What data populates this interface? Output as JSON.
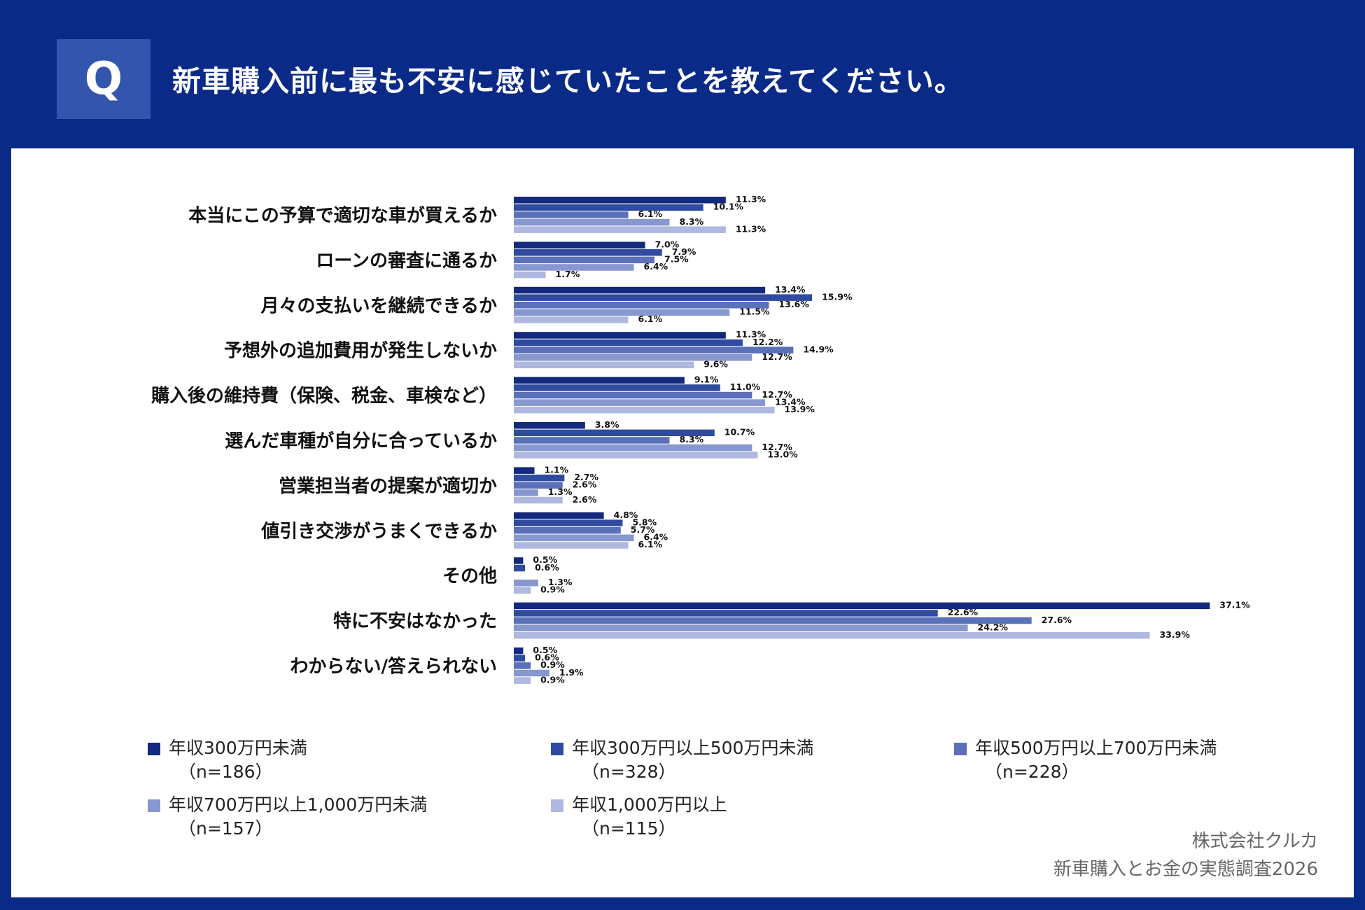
{
  "header": {
    "q_label": "Q",
    "question": "新車購入前に最も不安に感じていたことを教えてください。"
  },
  "colors": {
    "header_bg": "#0a2a88",
    "series": [
      "#12297e",
      "#2f4ba1",
      "#5a70b8",
      "#8797cf",
      "#aeb8e0"
    ]
  },
  "legend": [
    {
      "label": "年収300万円未満",
      "n": "（n=186）"
    },
    {
      "label": "年収300万円以上500万円未満",
      "n": "（n=328）"
    },
    {
      "label": "年収500万円以上700万円未満",
      "n": "（n=228）"
    },
    {
      "label": "年収700万円以上1,000万円未満",
      "n": "（n=157）"
    },
    {
      "label": "年収1,000万円以上",
      "n": "（n=115）"
    }
  ],
  "credit": {
    "company": "株式会社クルカ",
    "survey": "新車購入とお金の実態調査2026"
  },
  "chart_data": {
    "type": "bar",
    "orientation": "horizontal",
    "unit": "%",
    "xlim": [
      0,
      40
    ],
    "categories": [
      "本当にこの予算で適切な車が買えるか",
      "ローンの審査に通るか",
      "月々の支払いを継続できるか",
      "予想外の追加費用が発生しないか",
      "購入後の維持費（保険、税金、車検など）",
      "選んだ車種が自分に合っているか",
      "営業担当者の提案が適切か",
      "値引き交渉がうまくできるか",
      "その他",
      "特に不安はなかった",
      "わからない/答えられない"
    ],
    "series": [
      {
        "name": "年収300万円未満",
        "values": [
          11.3,
          7.0,
          13.4,
          11.3,
          9.1,
          3.8,
          1.1,
          4.8,
          0.5,
          37.1,
          0.5
        ]
      },
      {
        "name": "年収300万円以上500万円未満",
        "values": [
          10.1,
          7.9,
          15.9,
          12.2,
          11.0,
          10.7,
          2.7,
          5.8,
          0.6,
          22.6,
          0.6
        ]
      },
      {
        "name": "年収500万円以上700万円未満",
        "values": [
          6.1,
          7.5,
          13.6,
          14.9,
          12.7,
          8.3,
          2.6,
          5.7,
          0.0,
          27.6,
          0.9
        ]
      },
      {
        "name": "年収700万円以上1,000万円未満",
        "values": [
          8.3,
          6.4,
          11.5,
          12.7,
          13.4,
          12.7,
          1.3,
          6.4,
          1.3,
          24.2,
          1.9
        ]
      },
      {
        "name": "年収1,000万円以上",
        "values": [
          11.3,
          1.7,
          6.1,
          9.6,
          13.9,
          13.0,
          2.6,
          6.1,
          0.9,
          33.9,
          0.9
        ]
      }
    ]
  }
}
